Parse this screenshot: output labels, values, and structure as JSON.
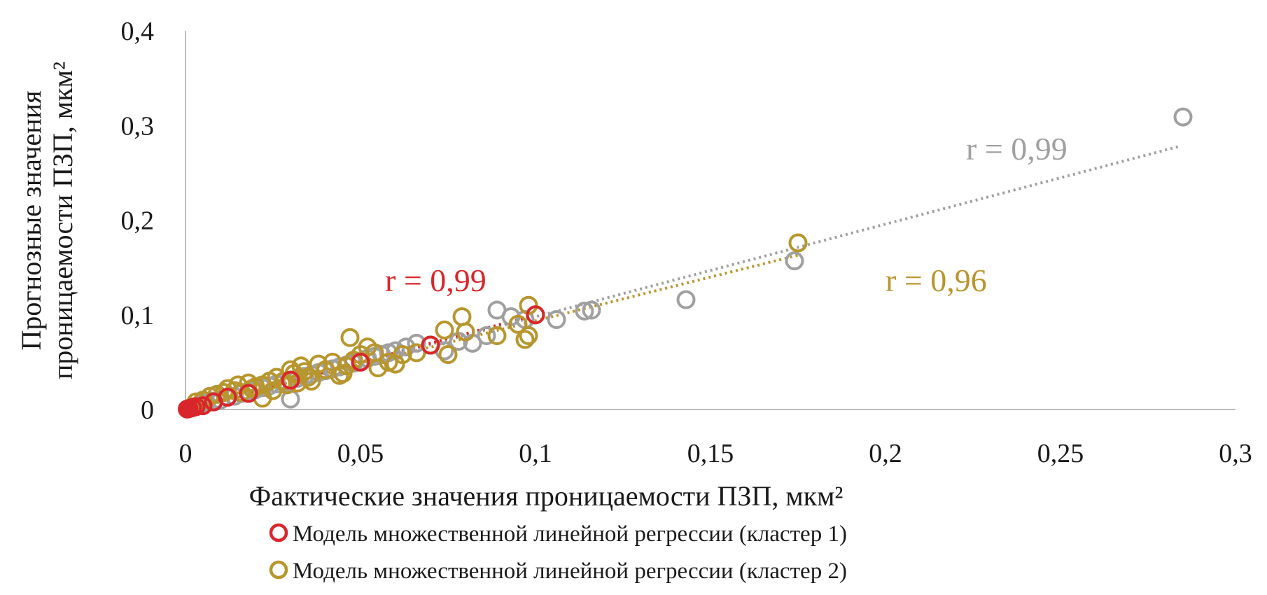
{
  "chart_data": {
    "type": "scatter",
    "xlabel": "Фактические значения проницаемости ПЗП, мкм²",
    "ylabel_line1": "Прогнозные значения",
    "ylabel_line2": "проницаемости ПЗП, мкм²",
    "xlim": [
      0,
      0.3
    ],
    "ylim": [
      0,
      0.4
    ],
    "x_ticks": [
      0,
      0.05,
      0.1,
      0.15,
      0.2,
      0.25,
      0.3
    ],
    "x_tick_labels": [
      "0",
      "0,05",
      "0,1",
      "0,15",
      "0,2",
      "0,25",
      "0,3"
    ],
    "y_ticks": [
      0,
      0.1,
      0.2,
      0.3,
      0.4
    ],
    "y_tick_labels": [
      "0",
      "0,1",
      "0,2",
      "0,3",
      "0,4"
    ],
    "grid": false,
    "legend_position": "bottom",
    "legend": [
      "Модель множественной линейной регрессии (кластер 1)",
      "Модель множественной линейной регрессии (кластер 2)"
    ],
    "series": [
      {
        "name": "Модель множественной линейной регрессии (кластер 1)",
        "color": "#d9262b",
        "r_label": "r = 0,99",
        "r_label_at": [
          0.057,
          0.125
        ],
        "trend": [
          [
            0,
            0
          ],
          [
            0.1,
            0.1
          ]
        ],
        "points": [
          [
            0.0005,
            0.0005
          ],
          [
            0.001,
            0.001
          ],
          [
            0.002,
            0.002
          ],
          [
            0.003,
            0.003
          ],
          [
            0.005,
            0.004
          ],
          [
            0.008,
            0.008
          ],
          [
            0.012,
            0.013
          ],
          [
            0.018,
            0.017
          ],
          [
            0.03,
            0.031
          ],
          [
            0.05,
            0.05
          ],
          [
            0.07,
            0.068
          ],
          [
            0.1,
            0.1
          ]
        ]
      },
      {
        "name": "Модель множественной линейной регрессии (кластер 2)",
        "color": "#b8962e",
        "r_label": "r = 0,96",
        "r_label_at": [
          0.2,
          0.125
        ],
        "trend": [
          [
            0.002,
            0.003
          ],
          [
            0.175,
            0.163
          ]
        ],
        "points": [
          [
            0.002,
            0.003
          ],
          [
            0.003,
            0.008
          ],
          [
            0.005,
            0.01
          ],
          [
            0.007,
            0.014
          ],
          [
            0.009,
            0.016
          ],
          [
            0.011,
            0.018
          ],
          [
            0.012,
            0.022
          ],
          [
            0.014,
            0.02
          ],
          [
            0.015,
            0.026
          ],
          [
            0.016,
            0.018
          ],
          [
            0.018,
            0.028
          ],
          [
            0.019,
            0.022
          ],
          [
            0.02,
            0.024
          ],
          [
            0.022,
            0.026
          ],
          [
            0.022,
            0.012
          ],
          [
            0.024,
            0.03
          ],
          [
            0.025,
            0.02
          ],
          [
            0.026,
            0.034
          ],
          [
            0.028,
            0.03
          ],
          [
            0.029,
            0.026
          ],
          [
            0.03,
            0.042
          ],
          [
            0.031,
            0.038
          ],
          [
            0.032,
            0.028
          ],
          [
            0.033,
            0.046
          ],
          [
            0.034,
            0.04
          ],
          [
            0.035,
            0.034
          ],
          [
            0.036,
            0.03
          ],
          [
            0.038,
            0.048
          ],
          [
            0.04,
            0.042
          ],
          [
            0.042,
            0.05
          ],
          [
            0.044,
            0.036
          ],
          [
            0.045,
            0.038
          ],
          [
            0.046,
            0.046
          ],
          [
            0.047,
            0.076
          ],
          [
            0.048,
            0.052
          ],
          [
            0.05,
            0.058
          ],
          [
            0.052,
            0.066
          ],
          [
            0.054,
            0.06
          ],
          [
            0.055,
            0.044
          ],
          [
            0.058,
            0.05
          ],
          [
            0.06,
            0.048
          ],
          [
            0.062,
            0.058
          ],
          [
            0.066,
            0.06
          ],
          [
            0.07,
            0.068
          ],
          [
            0.074,
            0.084
          ],
          [
            0.075,
            0.058
          ],
          [
            0.079,
            0.098
          ],
          [
            0.08,
            0.082
          ],
          [
            0.089,
            0.078
          ],
          [
            0.095,
            0.09
          ],
          [
            0.097,
            0.074
          ],
          [
            0.098,
            0.078
          ],
          [
            0.098,
            0.11
          ],
          [
            0.1,
            0.1
          ],
          [
            0.175,
            0.176
          ]
        ]
      },
      {
        "color": "#a0a0a0",
        "r_label": "r = 0,99",
        "r_label_at": [
          0.223,
          0.264
        ],
        "trend": [
          [
            0.003,
            0.003
          ],
          [
            0.284,
            0.278
          ]
        ],
        "points": [
          [
            0.004,
            0.005
          ],
          [
            0.006,
            0.007
          ],
          [
            0.008,
            0.009
          ],
          [
            0.01,
            0.01
          ],
          [
            0.012,
            0.013
          ],
          [
            0.014,
            0.014
          ],
          [
            0.016,
            0.017
          ],
          [
            0.018,
            0.019
          ],
          [
            0.02,
            0.021
          ],
          [
            0.022,
            0.023
          ],
          [
            0.024,
            0.025
          ],
          [
            0.026,
            0.027
          ],
          [
            0.028,
            0.029
          ],
          [
            0.03,
            0.031
          ],
          [
            0.03,
            0.011
          ],
          [
            0.032,
            0.033
          ],
          [
            0.034,
            0.035
          ],
          [
            0.036,
            0.037
          ],
          [
            0.038,
            0.039
          ],
          [
            0.04,
            0.041
          ],
          [
            0.042,
            0.043
          ],
          [
            0.044,
            0.045
          ],
          [
            0.046,
            0.047
          ],
          [
            0.048,
            0.049
          ],
          [
            0.05,
            0.051
          ],
          [
            0.052,
            0.054
          ],
          [
            0.054,
            0.056
          ],
          [
            0.056,
            0.058
          ],
          [
            0.058,
            0.06
          ],
          [
            0.06,
            0.062
          ],
          [
            0.063,
            0.066
          ],
          [
            0.066,
            0.07
          ],
          [
            0.07,
            0.068
          ],
          [
            0.074,
            0.062
          ],
          [
            0.078,
            0.072
          ],
          [
            0.082,
            0.07
          ],
          [
            0.086,
            0.078
          ],
          [
            0.089,
            0.105
          ],
          [
            0.093,
            0.098
          ],
          [
            0.097,
            0.095
          ],
          [
            0.1,
            0.1
          ],
          [
            0.106,
            0.095
          ],
          [
            0.114,
            0.104
          ],
          [
            0.116,
            0.105
          ],
          [
            0.143,
            0.116
          ],
          [
            0.174,
            0.157
          ],
          [
            0.285,
            0.309
          ]
        ]
      }
    ]
  }
}
